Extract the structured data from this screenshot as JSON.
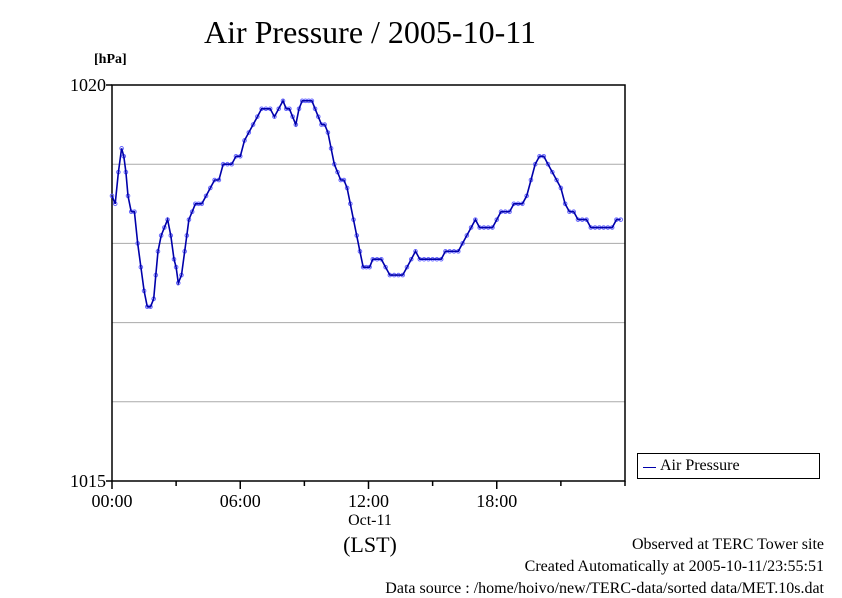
{
  "chart_data": {
    "type": "line",
    "title": "Air Pressure / 2005-10-11",
    "ylabel": "[hPa]",
    "xlabel": "(LST)",
    "x_date_label": "Oct-11",
    "ylim": [
      1015,
      1020
    ],
    "xlim_hours": [
      0,
      24
    ],
    "y_tick_labels": [
      "1020",
      "1015"
    ],
    "x_tick_labels": [
      "00:00",
      "06:00",
      "12:00",
      "18:00"
    ],
    "x_ticks_hours": [
      0,
      6,
      12,
      18
    ],
    "gridlines_y": [
      1016,
      1017,
      1018,
      1019
    ],
    "legend": {
      "label": "Air Pressure",
      "placement": "bottom-right outside"
    },
    "series": [
      {
        "name": "Air Pressure",
        "color": "#0000aa",
        "marker_color": "#6666ff",
        "x": [
          0.0,
          0.15,
          0.3,
          0.45,
          0.55,
          0.65,
          0.75,
          0.9,
          1.05,
          1.2,
          1.35,
          1.5,
          1.65,
          1.8,
          1.95,
          2.05,
          2.15,
          2.3,
          2.45,
          2.6,
          2.75,
          2.9,
          3.0,
          3.1,
          3.25,
          3.4,
          3.5,
          3.6,
          3.75,
          3.9,
          4.05,
          4.2,
          4.4,
          4.6,
          4.8,
          5.0,
          5.2,
          5.4,
          5.6,
          5.8,
          6.0,
          6.2,
          6.4,
          6.6,
          6.8,
          7.0,
          7.2,
          7.4,
          7.6,
          7.8,
          8.0,
          8.15,
          8.3,
          8.45,
          8.6,
          8.75,
          8.9,
          9.05,
          9.2,
          9.35,
          9.5,
          9.65,
          9.8,
          9.95,
          10.1,
          10.25,
          10.4,
          10.55,
          10.7,
          10.85,
          11.0,
          11.15,
          11.3,
          11.45,
          11.6,
          11.75,
          11.9,
          12.05,
          12.2,
          12.4,
          12.6,
          12.8,
          13.0,
          13.2,
          13.4,
          13.6,
          13.8,
          14.0,
          14.2,
          14.4,
          14.6,
          14.8,
          15.0,
          15.2,
          15.4,
          15.6,
          15.8,
          16.0,
          16.2,
          16.4,
          16.6,
          16.8,
          17.0,
          17.2,
          17.4,
          17.6,
          17.8,
          18.0,
          18.2,
          18.4,
          18.6,
          18.8,
          19.0,
          19.2,
          19.4,
          19.6,
          19.8,
          20.0,
          20.2,
          20.4,
          20.6,
          20.8,
          21.0,
          21.2,
          21.4,
          21.6,
          21.8,
          22.0,
          22.2,
          22.4,
          22.6,
          22.8,
          23.0,
          23.2,
          23.4,
          23.6,
          23.8
        ],
        "values": [
          1018.6,
          1018.5,
          1018.9,
          1019.2,
          1019.1,
          1018.9,
          1018.6,
          1018.4,
          1018.4,
          1018.0,
          1017.7,
          1017.4,
          1017.2,
          1017.2,
          1017.3,
          1017.6,
          1017.9,
          1018.1,
          1018.2,
          1018.3,
          1018.1,
          1017.8,
          1017.7,
          1017.5,
          1017.6,
          1017.9,
          1018.1,
          1018.3,
          1018.4,
          1018.5,
          1018.5,
          1018.5,
          1018.6,
          1018.7,
          1018.8,
          1018.8,
          1019.0,
          1019.0,
          1019.0,
          1019.1,
          1019.1,
          1019.3,
          1019.4,
          1019.5,
          1019.6,
          1019.7,
          1019.7,
          1019.7,
          1019.6,
          1019.7,
          1019.8,
          1019.7,
          1019.7,
          1019.6,
          1019.5,
          1019.7,
          1019.8,
          1019.8,
          1019.8,
          1019.8,
          1019.7,
          1019.6,
          1019.5,
          1019.5,
          1019.4,
          1019.2,
          1019.0,
          1018.9,
          1018.8,
          1018.8,
          1018.7,
          1018.5,
          1018.3,
          1018.1,
          1017.9,
          1017.7,
          1017.7,
          1017.7,
          1017.8,
          1017.8,
          1017.8,
          1017.7,
          1017.6,
          1017.6,
          1017.6,
          1017.6,
          1017.7,
          1017.8,
          1017.9,
          1017.8,
          1017.8,
          1017.8,
          1017.8,
          1017.8,
          1017.8,
          1017.9,
          1017.9,
          1017.9,
          1017.9,
          1018.0,
          1018.1,
          1018.2,
          1018.3,
          1018.2,
          1018.2,
          1018.2,
          1018.2,
          1018.3,
          1018.4,
          1018.4,
          1018.4,
          1018.5,
          1018.5,
          1018.5,
          1018.6,
          1018.8,
          1019.0,
          1019.1,
          1019.1,
          1019.0,
          1018.9,
          1018.8,
          1018.7,
          1018.5,
          1018.4,
          1018.4,
          1018.3,
          1018.3,
          1018.3,
          1018.2,
          1018.2,
          1018.2,
          1018.2,
          1018.2,
          1018.2,
          1018.3,
          1018.3
        ]
      }
    ]
  },
  "footer": {
    "line1": "Observed at TERC Tower site",
    "line2": "Created Automatically at 2005-10-11/23:55:51",
    "line3": "Data source : /home/hoivo/new/TERC-data/sorted  data/MET.10s.dat"
  }
}
